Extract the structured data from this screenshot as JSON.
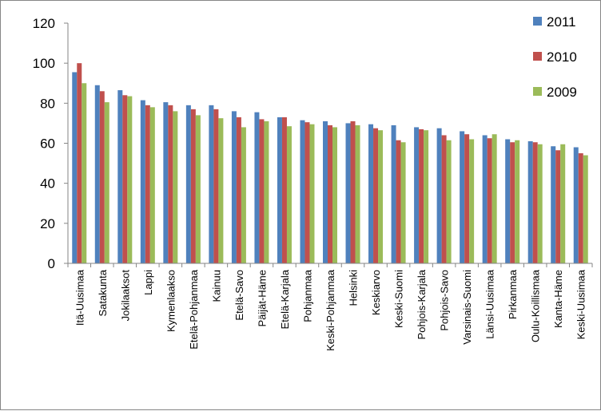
{
  "chart_data": {
    "type": "bar",
    "title": "",
    "xlabel": "",
    "ylabel": "",
    "ylim": [
      0,
      120
    ],
    "yticks": [
      0,
      20,
      40,
      60,
      80,
      100,
      120
    ],
    "grid": false,
    "legend_position": "right",
    "categories": [
      "Itä-Uusimaa",
      "Satakunta",
      "Jokilaaksot",
      "Lappi",
      "Kymenlaakso",
      "Etelä-Pohjanmaa",
      "Kainuu",
      "Etelä-Savo",
      "Päijät-Häme",
      "Etelä-Karjala",
      "Pohjanmaa",
      "Keski-Pohjanmaa",
      "Helsinki",
      "Keskiarvo",
      "Keski-Suomi",
      "Pohjois-Karjala",
      "Pohjois-Savo",
      "Varsinais-Suomi",
      "Länsi-Uusimaa",
      "Pirkanmaa",
      "Oulu-Koillismaa",
      "Kanta-Häme",
      "Keski-Uusimaa"
    ],
    "series": [
      {
        "name": "2011",
        "color": "#4F81BD",
        "values": [
          95.5,
          89,
          86.5,
          81.5,
          80.5,
          79,
          79,
          76,
          75.5,
          73,
          71.5,
          71,
          70,
          69.5,
          69,
          68,
          67.5,
          66,
          64,
          62,
          61,
          58.5,
          58
        ]
      },
      {
        "name": "2010",
        "color": "#C0504D",
        "values": [
          100,
          86,
          84,
          79,
          79,
          77,
          77,
          73,
          72,
          73,
          70.5,
          69,
          71,
          67.5,
          61.5,
          67,
          64,
          64.5,
          62.5,
          60.5,
          60.5,
          56.5,
          55
        ]
      },
      {
        "name": "2009",
        "color": "#9BBB59",
        "values": [
          90,
          80.5,
          83.5,
          78,
          76,
          74,
          72.5,
          68,
          71,
          68.5,
          69.5,
          68,
          69,
          66.5,
          60.5,
          66.5,
          61.5,
          62,
          64.5,
          61.5,
          59.5,
          59.5,
          54
        ]
      }
    ]
  }
}
